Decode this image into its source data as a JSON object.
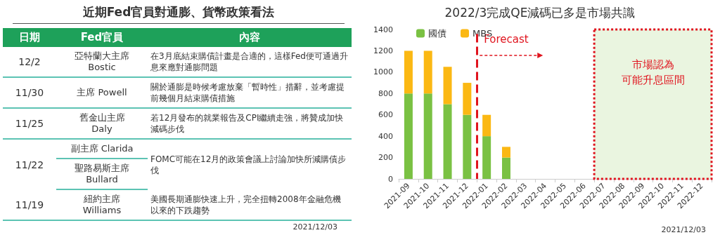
{
  "chart_data": [
    {
      "type": "other",
      "title": "近期Fed官員對通膨、貨幣政策看法",
      "annotations": [
        "日期",
        "Fed官員",
        "內容",
        "12/2",
        "亞特蘭大主席\nBostic",
        "在3月底結束購債計畫是合適的，這樣Fed便可通過升息來應對通膨問題",
        "11/30",
        "主席 Powell",
        "關於通膨是時候考慮放棄「暫時性」措辭，並考慮提前幾個月結束購債措施",
        "11/25",
        "舊金山主席\nDaly",
        "若12月發布的就業報告及CPI繼續走強，將贊成加快減碼步伐",
        "11/22",
        "副主席 Clarida",
        "聖路易斯主席\nBullard",
        "FOMC可能在12月的政策會議上討論加快所減購債步伐",
        "11/19",
        "紐約主席\nWilliams",
        "美國長期通膨快速上升，完全扭轉2008年金融危機以來的下跌趨勢",
        "2021/12/03"
      ]
    },
    {
      "type": "bar",
      "title": "2022/3完成QE減碼已多是市場共識",
      "stacked": true,
      "categories": [
        "2021-09",
        "2021-10",
        "2021-11",
        "2021-12",
        "2022-01",
        "2022-02",
        "2022-03",
        "2022-04",
        "2022-05",
        "2022-06",
        "2022-07",
        "2022-08",
        "2022-09",
        "2022-10",
        "2022-11",
        "2022-12"
      ],
      "series": [
        {
          "name": "國債",
          "color": "#7ac143",
          "values": [
            800,
            800,
            700,
            600,
            400,
            200,
            null,
            null,
            null,
            null,
            null,
            null,
            null,
            null,
            null,
            null
          ]
        },
        {
          "name": "MBS",
          "color": "#fbb813",
          "values": [
            400,
            400,
            350,
            300,
            200,
            100,
            null,
            null,
            null,
            null,
            null,
            null,
            null,
            null,
            null,
            null
          ]
        }
      ],
      "ylim": [
        0,
        1400
      ],
      "yticks": [
        0,
        200,
        400,
        600,
        800,
        1000,
        1200,
        1400
      ],
      "grid": false,
      "legend": "top left",
      "ref_lines": [
        {
          "axis": "x",
          "value": "2022-01",
          "label": "Forecast",
          "color": "#e0141e",
          "line_style": "dashed"
        }
      ],
      "bands": [
        {
          "axis": "x",
          "from": "2022-07",
          "to": "2022-12",
          "label": [
            "市場認為",
            "可能升息區間"
          ],
          "color": "#eaf5e0"
        }
      ],
      "annotations": [
        "2021/12/03"
      ]
    }
  ]
}
